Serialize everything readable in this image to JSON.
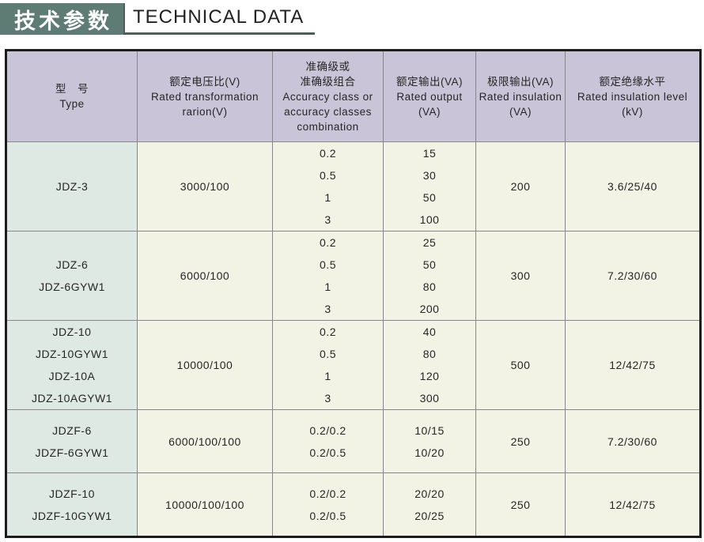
{
  "header": {
    "title_cn": "技术参数",
    "title_en": "TECHNICAL DATA"
  },
  "colors": {
    "title_box_bg": "#5e7b74",
    "header_bg": "#c9c4d7",
    "type_col_bg": "#dfe9e4",
    "cell_bg": "#f2f2e5",
    "grid_line": "#85878d",
    "table_outer_border": "#1c1c1c"
  },
  "table": {
    "columns": [
      {
        "id": "type",
        "lines": [
          "型　号",
          "Type"
        ]
      },
      {
        "id": "voltage_ratio",
        "lines": [
          "额定电压比(V)",
          "Rated transformation",
          "rarion(V)"
        ]
      },
      {
        "id": "accuracy",
        "lines": [
          "准确级或",
          "准确级组合",
          "Accuracy class or",
          "accuracy classes",
          "combination"
        ]
      },
      {
        "id": "rated_output",
        "lines": [
          "额定输出(VA)",
          "Rated output",
          "(VA)"
        ]
      },
      {
        "id": "limit_output",
        "lines": [
          "极限输出(VA)",
          "Rated insulation",
          "(VA)"
        ]
      },
      {
        "id": "insulation_level",
        "lines": [
          "额定绝缘水平",
          "Rated insulation level",
          "(kV)"
        ]
      }
    ],
    "rows": [
      {
        "type": [
          "JDZ-3"
        ],
        "voltage_ratio": [
          "3000/100"
        ],
        "accuracy": [
          "0.2",
          "0.5",
          "1",
          "3"
        ],
        "rated_output": [
          "15",
          "30",
          "50",
          "100"
        ],
        "limit_output": [
          "200"
        ],
        "insulation_level": [
          "3.6/25/40"
        ]
      },
      {
        "type": [
          "JDZ-6",
          "JDZ-6GYW1"
        ],
        "voltage_ratio": [
          "6000/100"
        ],
        "accuracy": [
          "0.2",
          "0.5",
          "1",
          "3"
        ],
        "rated_output": [
          "25",
          "50",
          "80",
          "200"
        ],
        "limit_output": [
          "300"
        ],
        "insulation_level": [
          "7.2/30/60"
        ]
      },
      {
        "type": [
          "JDZ-10",
          "JDZ-10GYW1",
          "JDZ-10A",
          "JDZ-10AGYW1"
        ],
        "voltage_ratio": [
          "10000/100"
        ],
        "accuracy": [
          "0.2",
          "0.5",
          "1",
          "3"
        ],
        "rated_output": [
          "40",
          "80",
          "120",
          "300"
        ],
        "limit_output": [
          "500"
        ],
        "insulation_level": [
          "12/42/75"
        ]
      },
      {
        "type": [
          "JDZF-6",
          "JDZF-6GYW1"
        ],
        "voltage_ratio": [
          "6000/100/100"
        ],
        "accuracy": [
          "0.2/0.2",
          "0.2/0.5"
        ],
        "rated_output": [
          "10/15",
          "10/20"
        ],
        "limit_output": [
          "250"
        ],
        "insulation_level": [
          "7.2/30/60"
        ]
      },
      {
        "type": [
          "JDZF-10",
          "JDZF-10GYW1"
        ],
        "voltage_ratio": [
          "10000/100/100"
        ],
        "accuracy": [
          "0.2/0.2",
          "0.2/0.5"
        ],
        "rated_output": [
          "20/20",
          "20/25"
        ],
        "limit_output": [
          "250"
        ],
        "insulation_level": [
          "12/42/75"
        ]
      }
    ]
  }
}
